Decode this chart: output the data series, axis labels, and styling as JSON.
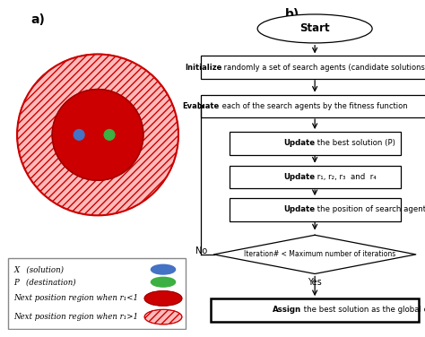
{
  "title_a": "a)",
  "title_b": "b)",
  "bg": "#FFFFFF",
  "outer_circle_color": "#FFBBBB",
  "outer_circle_edge": "#CC0000",
  "inner_circle_color": "#CC0000",
  "green_dot_color": "#3CB043",
  "blue_dot_color": "#4472C4",
  "arrow_color": "#CC0000",
  "legend_labels": [
    "X   (solution)",
    "P   (destination)",
    "Next position region when r₁<1",
    "Next position region when r₁>1"
  ],
  "legend_colors": [
    "#4472C4",
    "#3CB043",
    "#CC0000",
    "#FFBBBB"
  ],
  "flowchart": {
    "start_text": "Start",
    "boxes": [
      {
        "text_bold": "Initialize",
        "text_rest": " randomly a set of search agents (candidate solutions) (X)",
        "wide": true
      },
      {
        "text_bold": "Evaluate",
        "text_rest": " each of the search agents by the fitness function",
        "wide": true
      },
      {
        "text_bold": "Update",
        "text_rest": " the best solution (P)",
        "wide": false
      },
      {
        "text_bold": "Update",
        "text_rest": " r₁, r₂, r₃  and  r₄",
        "wide": false
      },
      {
        "text_bold": "Update",
        "text_rest": " the position of search agents",
        "wide": false
      }
    ],
    "diamond_text": "Iteration# < Maximum number of iterations",
    "no_text": "No",
    "yes_text": "Yes",
    "assign_bold": "Assign",
    "assign_rest": " the best solution as the global optimum"
  }
}
